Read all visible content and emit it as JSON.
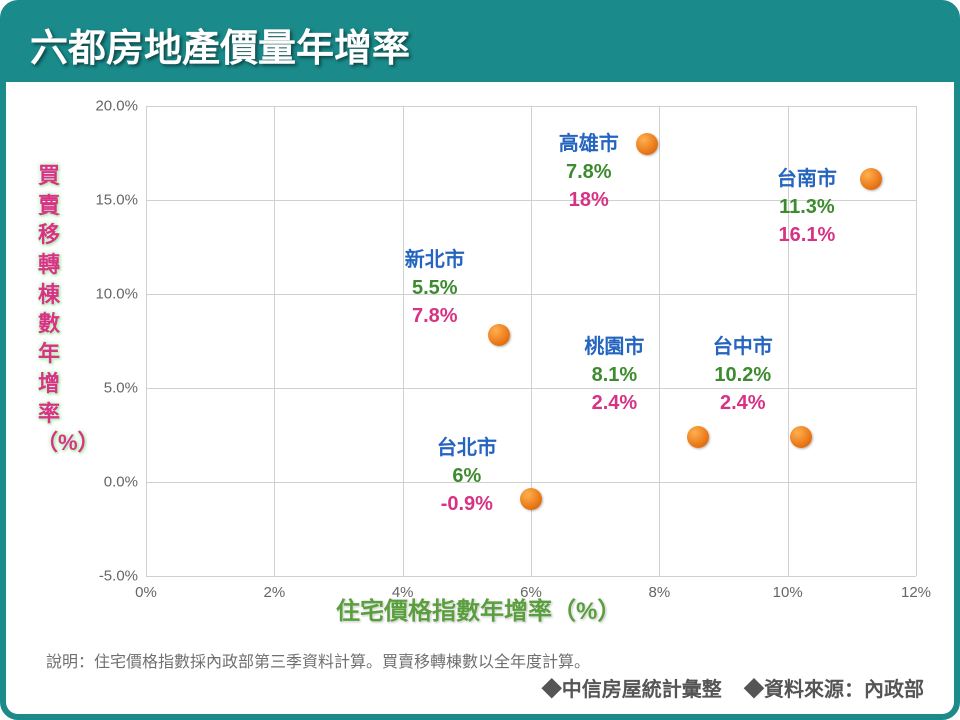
{
  "title": "六都房地產價量年增率",
  "chart": {
    "type": "scatter",
    "xlabel": "住宅價格指數年增率（%）",
    "ylabel": "買賣移轉棟數年增率（%）",
    "xlim": [
      0,
      12
    ],
    "ylim": [
      -5,
      20
    ],
    "xticks": [
      0,
      2,
      4,
      6,
      8,
      10,
      12
    ],
    "yticks": [
      -5,
      0,
      5,
      10,
      15,
      20
    ],
    "xtick_labels": [
      "0%",
      "2%",
      "4%",
      "6%",
      "8%",
      "10%",
      "12%"
    ],
    "ytick_labels": [
      "-5.0%",
      "0.0%",
      "5.0%",
      "10.0%",
      "15.0%",
      "20.0%"
    ],
    "grid_color": "#d0d0d0",
    "marker_color": "#e67010",
    "marker_size": 22,
    "background": "#ffffff",
    "city_color": "#2565c0",
    "val1_color": "#3d8b2e",
    "val2_color": "#d63384",
    "label_fontsize": 20,
    "axis_tick_fontsize": 15,
    "points": [
      {
        "city": "高雄市",
        "x": 7.8,
        "y": 18.0,
        "v1": "7.8%",
        "v2": "18%",
        "lx": 6.9,
        "ly": 18.0
      },
      {
        "city": "台南市",
        "x": 11.3,
        "y": 16.1,
        "v1": "11.3%",
        "v2": "16.1%",
        "lx": 10.3,
        "ly": 16.1
      },
      {
        "city": "新北市",
        "x": 5.5,
        "y": 7.8,
        "v1": "5.5%",
        "v2": "7.8%",
        "lx": 4.5,
        "ly": 11.8
      },
      {
        "city": "桃園市",
        "x": 8.1,
        "y": 2.4,
        "v1": "8.1%",
        "v2": "2.4%",
        "lx": 7.3,
        "ly": 7.2,
        "mx": 8.6
      },
      {
        "city": "台中市",
        "x": 10.2,
        "y": 2.4,
        "v1": "10.2%",
        "v2": "2.4%",
        "lx": 9.3,
        "ly": 7.2
      },
      {
        "city": "台北市",
        "x": 6.0,
        "y": -0.9,
        "v1": "6%",
        "v2": "-0.9%",
        "lx": 5.0,
        "ly": 1.8
      }
    ]
  },
  "note": "說明：住宅價格指數採內政部第三季資料計算。買賣移轉棟數以全年度計算。",
  "source_left": "◆中信房屋統計彙整",
  "source_right": "◆資料來源：內政部"
}
